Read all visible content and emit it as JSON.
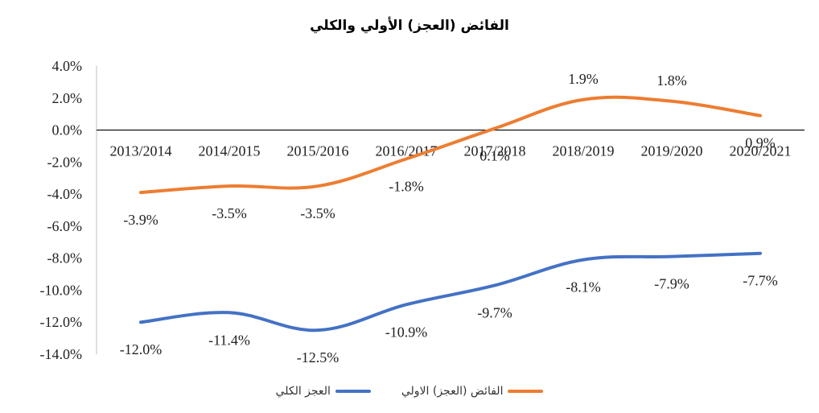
{
  "chart_data": {
    "type": "line",
    "title": "الفائض (العجز) الأولي والكلي",
    "categories": [
      "2013/2014",
      "2014/2015",
      "2015/2016",
      "2016/2017",
      "2017/2018",
      "2018/2019",
      "2019/2020",
      "2020/2021"
    ],
    "ylim": [
      -14,
      4
    ],
    "yticks": [
      "4.0%",
      "2.0%",
      "0.0%",
      "-2.0%",
      "-4.0%",
      "-6.0%",
      "-8.0%",
      "-10.0%",
      "-12.0%",
      "-14.0%"
    ],
    "grid": false,
    "legend_position": "bottom",
    "series": [
      {
        "name": "الفائض (العجز) الاولي",
        "color": "#ED7D31",
        "values": [
          -3.9,
          -3.5,
          -3.5,
          -1.8,
          0.1,
          1.9,
          1.8,
          0.9
        ],
        "labels": [
          "-3.9%",
          "-3.5%",
          "-3.5%",
          "-1.8%",
          "0.1%",
          "1.9%",
          "1.8%",
          "0.9%"
        ]
      },
      {
        "name": "العجز الكلي",
        "color": "#4472C4",
        "values": [
          -12.0,
          -11.4,
          -12.5,
          -10.9,
          -9.7,
          -8.1,
          -7.9,
          -7.7
        ],
        "labels": [
          "-12.0%",
          "-11.4%",
          "-12.5%",
          "-10.9%",
          "-9.7%",
          "-8.1%",
          "-7.9%",
          "-7.7%"
        ]
      }
    ]
  }
}
